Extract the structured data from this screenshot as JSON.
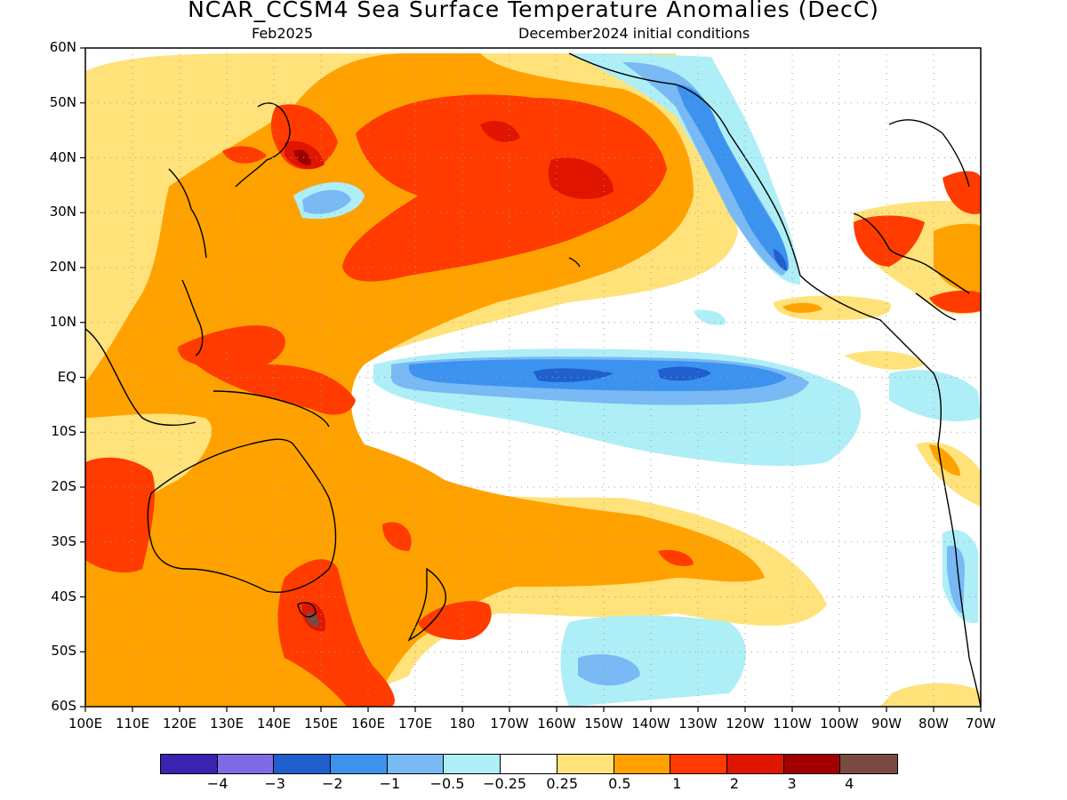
{
  "title": "NCAR_CCSM4 Sea Surface Temperature Anomalies (DecC)",
  "subtitle_left": "Feb2025",
  "subtitle_right": "December2024 initial conditions",
  "lat_labels": [
    "60N",
    "50N",
    "40N",
    "30N",
    "20N",
    "10N",
    "EQ",
    "10S",
    "20S",
    "30S",
    "40S",
    "50S",
    "60S"
  ],
  "lon_labels": [
    "100E",
    "110E",
    "120E",
    "130E",
    "140E",
    "150E",
    "160E",
    "170E",
    "180",
    "170W",
    "160W",
    "150W",
    "140W",
    "130W",
    "120W",
    "110W",
    "100W",
    "90W",
    "80W",
    "70W"
  ],
  "legend": {
    "colors": [
      "#3a23b0",
      "#7d6be6",
      "#1f5fce",
      "#3c92ef",
      "#79b9f4",
      "#aeeef7",
      "#ffffff",
      "#ffe27a",
      "#ffa200",
      "#ff3b00",
      "#e01500",
      "#a20000",
      "#7a4a40"
    ],
    "labels": [
      "-4",
      "-3",
      "-2",
      "-1",
      "-0.5",
      "-0.25",
      "0.25",
      "0.5",
      "1",
      "2",
      "3",
      "4"
    ]
  },
  "colors": {
    "map_background": "#ffffff",
    "frame": "#000000",
    "grid": "#a0a0a0",
    "coast": "#000000"
  }
}
